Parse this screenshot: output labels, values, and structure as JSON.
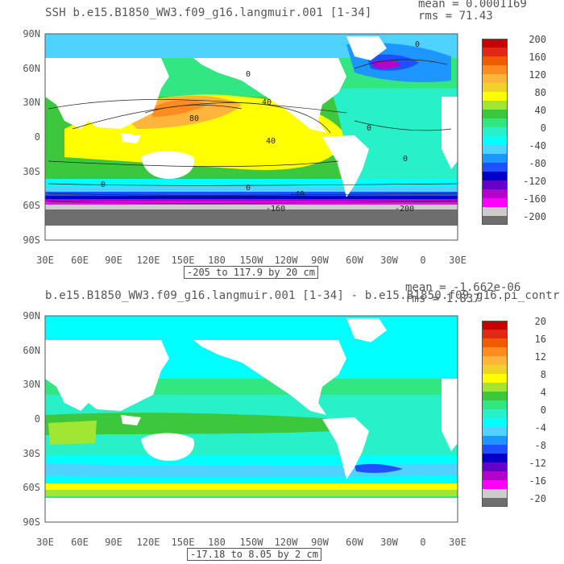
{
  "top": {
    "title": "SSH b.e15.B1850_WW3.f09_g16.langmuir.001 [1-34]",
    "mean": "mean = 0.0001169",
    "rms": "rms = 71.43",
    "lat_labels": [
      "90N",
      "60N",
      "30N",
      "0",
      "30S",
      "60S",
      "90S"
    ],
    "lon_labels": [
      "30E",
      "60E",
      "90E",
      "120E",
      "150E",
      "180",
      "150W",
      "120W",
      "90W",
      "60W",
      "30W",
      "0",
      "30E"
    ],
    "range": "-205 to 117.9 by 20 cm",
    "colorbar_labels": [
      "200",
      "160",
      "120",
      "80",
      "40",
      "0",
      "-40",
      "-80",
      "-120",
      "-160",
      "-200"
    ],
    "colorbar_colors": [
      "#c80000",
      "#e02814",
      "#f05a00",
      "#ff8c1e",
      "#ffb43c",
      "#f0d228",
      "#ffff00",
      "#a0e632",
      "#3cc83c",
      "#32e682",
      "#28f0c8",
      "#00ffff",
      "#50d2ff",
      "#1e96ff",
      "#1e50ff",
      "#0000c8",
      "#6400c8",
      "#b400c8",
      "#ff00ff",
      "#cccccc",
      "#6e6e6e"
    ],
    "contour_labels": [
      "0",
      "0",
      "40",
      "80",
      "40",
      "0",
      "0",
      "0",
      "-40",
      "-160",
      "-200",
      "0"
    ]
  },
  "bottom": {
    "title": "b.e15.B1850_WW3.f09_g16.langmuir.001 [1-34] - b.e15.B1850.f09_g16.pi_contr",
    "mean": "mean = -1.662e-06",
    "rms": "rms = 1.837",
    "lat_labels": [
      "90N",
      "60N",
      "30N",
      "0",
      "30S",
      "60S",
      "90S"
    ],
    "lon_labels": [
      "30E",
      "60E",
      "90E",
      "120E",
      "150E",
      "180",
      "150W",
      "120W",
      "90W",
      "60W",
      "30W",
      "0",
      "30E"
    ],
    "range": "-17.18 to 8.05 by 2 cm",
    "colorbar_labels": [
      "20",
      "16",
      "12",
      "8",
      "4",
      "0",
      "-4",
      "-8",
      "-12",
      "-16",
      "-20"
    ],
    "colorbar_colors": [
      "#c80000",
      "#e02814",
      "#f05a00",
      "#ff8c1e",
      "#ffb43c",
      "#f0d228",
      "#ffff00",
      "#a0e632",
      "#3cc83c",
      "#32e682",
      "#28f0c8",
      "#00ffff",
      "#50d2ff",
      "#1e96ff",
      "#1e50ff",
      "#0000c8",
      "#6400c8",
      "#b400c8",
      "#ff00ff",
      "#cccccc",
      "#6e6e6e"
    ]
  },
  "colors": {
    "land": "#ffffff",
    "frame": "#555555",
    "green": "#32c83c",
    "yellow": "#ffff00",
    "gold": "#ffb43c",
    "orange": "#ff8c1e",
    "teal": "#28f0c8",
    "cyan": "#00ffff",
    "sky": "#50d2ff",
    "blue": "#1e96ff",
    "darkblue": "#0000c8",
    "purple": "#b400c8",
    "magenta": "#ff00ff",
    "grey": "#cccccc",
    "darkgrey": "#6e6e6e",
    "lime": "#a0e632"
  }
}
